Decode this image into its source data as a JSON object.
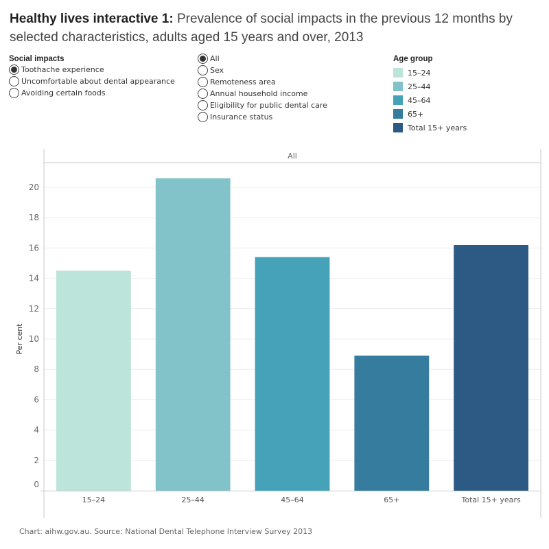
{
  "title": {
    "bold": "Healthy lives interactive 1:",
    "rest": " Prevalence of social impacts in the previous 12 months by selected characteristics, adults aged 15 years and over, 2013"
  },
  "filters": {
    "social_impacts": {
      "header": "Social impacts",
      "options": [
        {
          "label": "Toothache experience",
          "selected": true
        },
        {
          "label": "Uncomfortable about dental appearance",
          "selected": false
        },
        {
          "label": "Avoiding certain foods",
          "selected": false
        }
      ]
    },
    "characteristics": {
      "options": [
        {
          "label": "All",
          "selected": true
        },
        {
          "label": "Sex",
          "selected": false
        },
        {
          "label": "Remoteness area",
          "selected": false
        },
        {
          "label": "Annual household income",
          "selected": false
        },
        {
          "label": "Eligibility for public dental care",
          "selected": false
        },
        {
          "label": "Insurance status",
          "selected": false
        }
      ]
    }
  },
  "legend": {
    "header": "Age group",
    "items": [
      {
        "label": "15–24",
        "color": "#BDE4DA"
      },
      {
        "label": "25–44",
        "color": "#82C3CA"
      },
      {
        "label": "45–64",
        "color": "#46A2B9"
      },
      {
        "label": "65+",
        "color": "#357C9F"
      },
      {
        "label": "Total 15+ years",
        "color": "#2D5A85"
      }
    ]
  },
  "chart_data": {
    "type": "bar",
    "panel_label": "All",
    "categories": [
      "15–24",
      "25–44",
      "45–64",
      "65+",
      "Total 15+ years"
    ],
    "values": [
      14.5,
      20.6,
      15.4,
      8.9,
      16.2
    ],
    "colors": [
      "#BDE4DA",
      "#82C3CA",
      "#46A2B9",
      "#357C9F",
      "#2D5A85"
    ],
    "title": "",
    "xlabel": "",
    "ylabel": "Per cent",
    "ylim": [
      0,
      21.5
    ],
    "yticks": [
      0,
      2,
      4,
      6,
      8,
      10,
      12,
      14,
      16,
      18,
      20
    ],
    "grid": true,
    "legend_position": "top-right"
  },
  "footer": "Chart: aihw.gov.au. Source: National Dental Telephone Interview Survey 2013"
}
